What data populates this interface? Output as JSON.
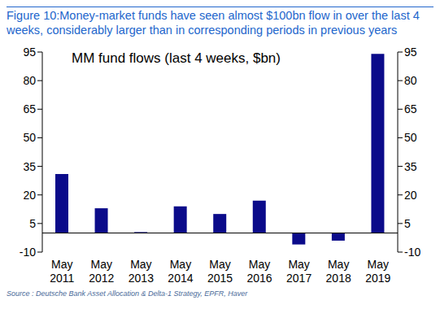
{
  "chart_data": {
    "type": "bar",
    "title": "Figure 10:Money-market funds have seen almost $100bn flow in over the last 4 weeks, considerably larger than in corresponding periods in previous years",
    "subtitle": "MM fund flows (last 4 weeks, $bn)",
    "source": "Source : Deutsche Bank Asset Allocation & Delta-1 Strategy, EPFR, Haver",
    "categories": [
      "May 2011",
      "May 2012",
      "May 2013",
      "May 2014",
      "May 2015",
      "May 2016",
      "May 2017",
      "May 2018",
      "May 2019"
    ],
    "values": [
      31,
      13,
      0.5,
      14,
      10,
      17,
      -6,
      -4,
      94
    ],
    "color": "#0b0b8a",
    "ylim": [
      -10,
      95
    ],
    "yticks": [
      -10,
      5,
      20,
      35,
      50,
      65,
      80,
      95
    ],
    "y2lim": [
      -10,
      95
    ],
    "y2ticks": [
      -10,
      5,
      20,
      35,
      50,
      65,
      80,
      95
    ],
    "grid": false
  }
}
